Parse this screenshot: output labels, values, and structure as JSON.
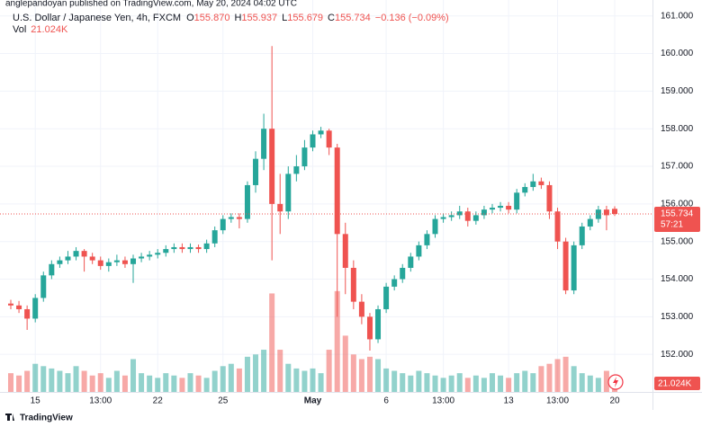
{
  "chart_data": {
    "type": "candlestick",
    "published": "anglepandoyan published on TradingView.com, May 20, 2024 04:02 UTC",
    "title": "U.S. Dollar / Japanese Yen, 4h, FXCM",
    "legend_ohlc": [
      {
        "key": "O",
        "value": "155.870"
      },
      {
        "key": "H",
        "value": "155.937"
      },
      {
        "key": "L",
        "value": "155.679"
      },
      {
        "key": "C",
        "value": "155.734"
      }
    ],
    "change": "−0.136 (−0.09%)",
    "countdown": "57:21",
    "brand": "TradingView",
    "up_color": "#26a69a",
    "down_color": "#ef5350",
    "grid": true,
    "categories": [
      null,
      null,
      null,
      "15",
      null,
      null,
      null,
      null,
      null,
      null,
      null,
      "13:00",
      null,
      null,
      null,
      null,
      null,
      null,
      "22",
      null,
      null,
      null,
      null,
      null,
      null,
      null,
      "25",
      null,
      null,
      null,
      null,
      null,
      null,
      null,
      null,
      null,
      null,
      "May",
      null,
      null,
      null,
      null,
      null,
      null,
      null,
      null,
      "6",
      null,
      null,
      null,
      null,
      null,
      null,
      "13:00",
      null,
      null,
      null,
      null,
      null,
      null,
      null,
      "13",
      null,
      null,
      null,
      null,
      null,
      "13:00",
      null,
      null,
      null,
      null,
      null,
      null,
      "20"
    ],
    "open": [
      153.35,
      153.3,
      153.2,
      152.95,
      153.5,
      154.1,
      154.4,
      154.5,
      154.6,
      154.75,
      154.6,
      154.5,
      154.35,
      154.45,
      154.5,
      154.4,
      154.55,
      154.6,
      154.65,
      154.7,
      154.8,
      154.85,
      154.8,
      154.85,
      154.8,
      154.95,
      155.3,
      155.6,
      155.65,
      155.6,
      156.5,
      157.2,
      158.0,
      156.0,
      155.8,
      156.8,
      157.0,
      157.5,
      157.85,
      157.95,
      157.5,
      155.2,
      154.3,
      153.4,
      153.0,
      152.4,
      153.2,
      153.8,
      154.0,
      154.3,
      154.6,
      154.9,
      155.2,
      155.6,
      155.65,
      155.7,
      155.8,
      155.55,
      155.7,
      155.85,
      155.9,
      155.95,
      155.85,
      156.3,
      156.45,
      156.6,
      156.5,
      155.8,
      155.0,
      153.7,
      154.9,
      155.4,
      155.6,
      155.85,
      155.87
    ],
    "high": [
      153.45,
      153.42,
      153.3,
      153.6,
      154.2,
      154.5,
      154.6,
      154.75,
      154.85,
      154.8,
      154.7,
      154.6,
      154.55,
      154.65,
      154.6,
      154.65,
      154.7,
      154.75,
      154.8,
      154.9,
      154.95,
      154.95,
      154.95,
      154.92,
      155.05,
      155.4,
      155.7,
      155.75,
      155.75,
      156.6,
      157.4,
      158.4,
      160.2,
      156.8,
      157.0,
      157.3,
      157.7,
      157.95,
      158.05,
      158.0,
      157.6,
      155.5,
      154.5,
      153.6,
      153.1,
      153.3,
      153.9,
      154.1,
      154.4,
      154.7,
      155.0,
      155.3,
      155.7,
      155.75,
      155.8,
      155.95,
      155.9,
      155.8,
      155.95,
      156.0,
      156.05,
      156.05,
      156.4,
      156.55,
      156.8,
      156.7,
      156.6,
      155.9,
      155.1,
      155.0,
      155.5,
      155.7,
      155.95,
      155.95,
      155.937
    ],
    "low": [
      153.2,
      153.1,
      152.65,
      152.85,
      153.4,
      154.0,
      154.3,
      154.4,
      154.5,
      154.2,
      154.4,
      154.25,
      154.2,
      154.35,
      154.3,
      153.9,
      154.45,
      154.5,
      154.55,
      154.6,
      154.7,
      154.7,
      154.7,
      154.7,
      154.7,
      154.85,
      155.2,
      155.5,
      155.35,
      155.5,
      156.3,
      156.9,
      154.5,
      155.2,
      155.6,
      156.6,
      156.9,
      157.4,
      157.75,
      157.3,
      153.0,
      153.6,
      153.2,
      152.8,
      152.1,
      152.3,
      153.1,
      153.7,
      153.9,
      154.2,
      154.5,
      154.8,
      155.1,
      155.5,
      155.55,
      155.6,
      155.4,
      155.45,
      155.6,
      155.75,
      155.8,
      155.75,
      155.75,
      156.2,
      156.35,
      156.4,
      155.6,
      154.8,
      153.6,
      153.6,
      154.8,
      155.3,
      155.5,
      155.3,
      155.679
    ],
    "close": [
      153.3,
      153.2,
      152.95,
      153.5,
      154.1,
      154.4,
      154.5,
      154.6,
      154.75,
      154.6,
      154.5,
      154.35,
      154.45,
      154.5,
      154.4,
      154.55,
      154.6,
      154.65,
      154.7,
      154.8,
      154.85,
      154.8,
      154.85,
      154.8,
      154.95,
      155.3,
      155.6,
      155.65,
      155.6,
      156.5,
      157.2,
      158.0,
      156.0,
      155.8,
      156.8,
      157.0,
      157.5,
      157.85,
      157.95,
      157.5,
      155.2,
      154.3,
      153.4,
      153.0,
      152.4,
      153.2,
      153.8,
      154.0,
      154.3,
      154.6,
      154.9,
      155.2,
      155.6,
      155.65,
      155.7,
      155.8,
      155.55,
      155.7,
      155.85,
      155.9,
      155.95,
      155.85,
      156.3,
      156.45,
      156.6,
      156.5,
      155.8,
      155.0,
      153.7,
      154.9,
      155.4,
      155.6,
      155.85,
      155.7,
      155.734
    ],
    "volume": {
      "name": "Vol",
      "last_label": "21.024K",
      "values": [
        40,
        35,
        45,
        60,
        55,
        50,
        45,
        40,
        55,
        45,
        35,
        40,
        30,
        45,
        35,
        70,
        40,
        35,
        30,
        40,
        35,
        30,
        40,
        35,
        30,
        45,
        55,
        60,
        50,
        75,
        80,
        90,
        210,
        90,
        60,
        50,
        45,
        50,
        40,
        90,
        215,
        120,
        80,
        70,
        75,
        70,
        50,
        45,
        40,
        35,
        45,
        40,
        35,
        30,
        35,
        40,
        30,
        35,
        30,
        40,
        35,
        30,
        40,
        45,
        40,
        55,
        60,
        70,
        75,
        55,
        40,
        35,
        30,
        45,
        21.024
      ]
    },
    "vlim": [
      0,
      230
    ],
    "ylim": [
      151,
      161.4
    ],
    "yticks": [
      {
        "value": 152,
        "label": "152.000"
      },
      {
        "value": 153,
        "label": "153.000"
      },
      {
        "value": 154,
        "label": "154.000"
      },
      {
        "value": 155,
        "label": "155.000"
      },
      {
        "value": 156,
        "label": "156.000"
      },
      {
        "value": 157,
        "label": "157.000"
      },
      {
        "value": 158,
        "label": "158.000"
      },
      {
        "value": 159,
        "label": "159.000"
      },
      {
        "value": 160,
        "label": "160.000"
      },
      {
        "value": 161,
        "label": "161.000"
      }
    ]
  }
}
